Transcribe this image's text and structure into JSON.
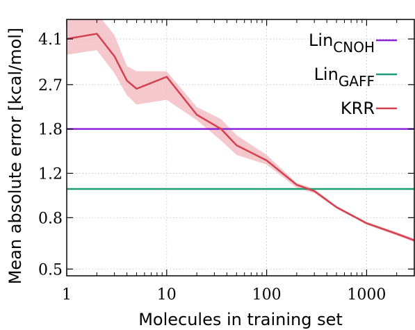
{
  "chart_data": {
    "type": "line",
    "xlabel": "Molecules in training set",
    "ylabel": "Mean absolute error [kcal/mol]",
    "xscale": "log",
    "yscale": "log",
    "xlim": [
      1,
      3000
    ],
    "ylim": [
      0.47,
      4.9
    ],
    "x_ticks": [
      1,
      10,
      100,
      1000
    ],
    "x_tick_labels": [
      "1",
      "10",
      "100",
      "1000"
    ],
    "y_ticks": [
      0.5,
      0.8,
      1.2,
      1.8,
      2.7,
      4.1
    ],
    "y_tick_labels": [
      "0.5",
      "0.8",
      "1.2",
      "1.8",
      "2.7",
      "4.1"
    ],
    "grid": true,
    "legend_position": "top-right",
    "series": [
      {
        "name": "Lin",
        "name_sub": "CNOH",
        "style": "hline",
        "color": "#8B22D6",
        "x": [
          1,
          3000
        ],
        "y": [
          1.8,
          1.8
        ]
      },
      {
        "name": "Lin",
        "name_sub": "GAFF",
        "style": "hline",
        "color": "#1B9E77",
        "x": [
          1,
          3000
        ],
        "y": [
          1.04,
          1.04
        ]
      },
      {
        "name": "KRR",
        "name_sub": "",
        "style": "line-band",
        "color": "#D4404F",
        "band_color": "#F2B6BC",
        "x": [
          1,
          2,
          3,
          4,
          5,
          10,
          20,
          35,
          50,
          100,
          200,
          300,
          500,
          1000,
          2000,
          3000
        ],
        "y": [
          4.1,
          4.3,
          3.5,
          2.8,
          2.6,
          2.9,
          2.05,
          1.8,
          1.55,
          1.35,
          1.08,
          1.02,
          0.88,
          0.76,
          0.69,
          0.65
        ],
        "y_low": [
          3.55,
          3.7,
          3.0,
          2.45,
          2.25,
          2.35,
          1.95,
          1.62,
          1.42,
          1.3,
          1.05,
          1.0,
          0.87,
          0.75,
          0.68,
          0.64
        ],
        "y_high": [
          4.85,
          5.2,
          4.25,
          3.2,
          3.05,
          3.05,
          2.2,
          1.97,
          1.7,
          1.42,
          1.1,
          1.04,
          0.89,
          0.77,
          0.7,
          0.66
        ]
      }
    ]
  }
}
